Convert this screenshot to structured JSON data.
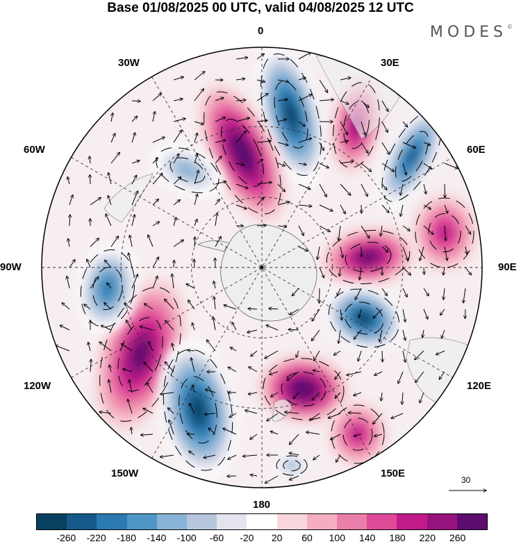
{
  "title": "Base 01/08/2025 00 UTC, valid 04/08/2025 12 UTC",
  "brand": "MODES",
  "brand_mark": "©",
  "meridian_labels": {
    "lon_0": "0",
    "lon_30e": "30E",
    "lon_60e": "60E",
    "lon_90e": "90E",
    "lon_120e": "120E",
    "lon_150e": "150E",
    "lon_180": "180",
    "lon_150w": "150W",
    "lon_120w": "120W",
    "lon_90w": "90W",
    "lon_60w": "60W",
    "lon_30w": "30W"
  },
  "reference_vector": "30",
  "colorbar": {
    "colors": [
      "#08415f",
      "#155a8a",
      "#2a7ab0",
      "#4f97c6",
      "#89b3d6",
      "#b7c7de",
      "#e4e4ef",
      "#ffffff",
      "#f8d7dc",
      "#f4aec0",
      "#ec7fa9",
      "#de4a98",
      "#c11b8a",
      "#96137d",
      "#5c0d6e"
    ],
    "ticks": [
      "-260",
      "-220",
      "-180",
      "-140",
      "-100",
      "-60",
      "-20",
      "20",
      "60",
      "100",
      "140",
      "180",
      "220",
      "260"
    ]
  },
  "anomaly_centers": [
    {
      "sign": "negative",
      "level": -260
    },
    {
      "sign": "positive",
      "level": 260
    },
    {
      "sign": "positive",
      "level": 180
    },
    {
      "sign": "negative",
      "level": -220
    },
    {
      "sign": "positive",
      "level": 140
    },
    {
      "sign": "positive",
      "level": 220
    },
    {
      "sign": "negative",
      "level": -260
    },
    {
      "sign": "positive",
      "level": 220
    },
    {
      "sign": "negative",
      "level": -260
    },
    {
      "sign": "positive",
      "level": 260
    },
    {
      "sign": "negative",
      "level": -180
    },
    {
      "sign": "negative",
      "level": -100
    },
    {
      "sign": "positive",
      "level": 140
    },
    {
      "sign": "negative",
      "level": -100
    }
  ]
}
